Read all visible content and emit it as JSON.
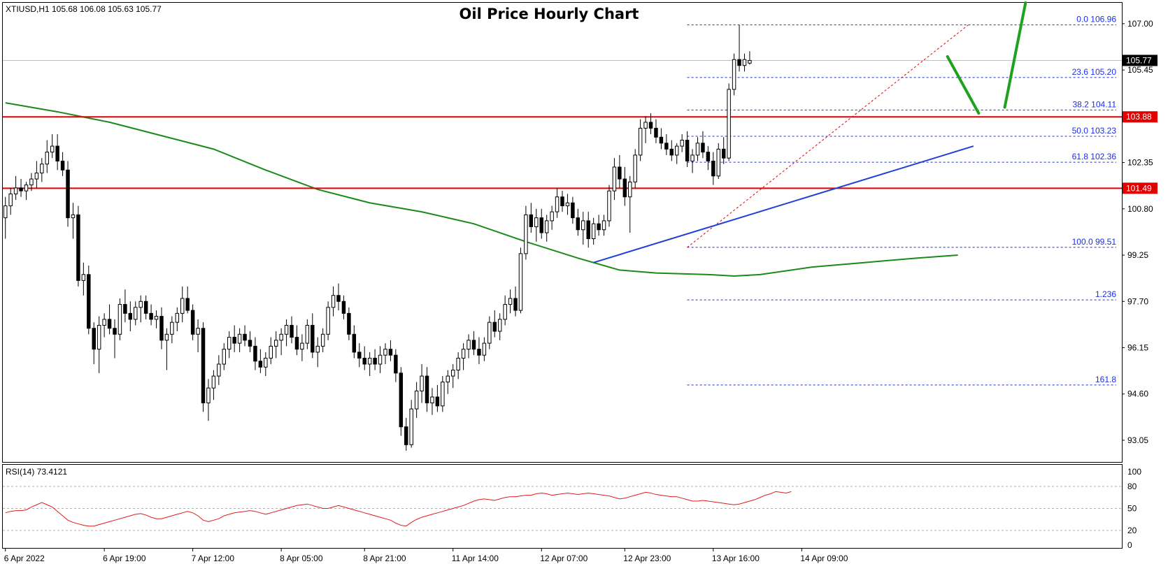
{
  "chart_data": {
    "type": "candlestick",
    "title": "Oil Price Hourly Chart",
    "symbol_info": "XTIUSD,H1  105.68 106.08 105.63 105.77",
    "price_axis": {
      "ylim": [
        92.3,
        107.7
      ],
      "ticks": [
        "107.00",
        "105.45",
        "102.35",
        "100.80",
        "99.25",
        "97.70",
        "96.15",
        "94.60",
        "93.05"
      ],
      "current_price": "105.77"
    },
    "x_axis": {
      "ticks": [
        {
          "label": "6 Apr 2022",
          "bar": 0
        },
        {
          "label": "6 Apr 19:00",
          "bar": 19
        },
        {
          "label": "7 Apr 12:00",
          "bar": 36
        },
        {
          "label": "8 Apr 05:00",
          "bar": 53
        },
        {
          "label": "8 Apr 21:00",
          "bar": 69
        },
        {
          "label": "11 Apr 14:00",
          "bar": 86
        },
        {
          "label": "12 Apr 07:00",
          "bar": 103
        },
        {
          "label": "12 Apr 23:00",
          "bar": 119
        },
        {
          "label": "13 Apr 16:00",
          "bar": 136
        },
        {
          "label": "14 Apr 09:00",
          "bar": 153
        }
      ],
      "bar_count_visible": 215
    },
    "horizontal_levels": [
      {
        "price": 103.88,
        "label": "103.88",
        "color": "#e00000"
      },
      {
        "price": 101.49,
        "label": "101.49",
        "color": "#e00000"
      }
    ],
    "fibonacci": {
      "levels": [
        {
          "label": "0.0 106.96",
          "price": 106.96
        },
        {
          "label": "23.6 105.20",
          "price": 105.2
        },
        {
          "label": "38.2 104.11",
          "price": 104.11
        },
        {
          "label": "50.0 103.23",
          "price": 103.23
        },
        {
          "label": "61.8 102.36",
          "price": 102.36
        },
        {
          "label": "100.0 99.51",
          "price": 99.51
        },
        {
          "label": "1.236",
          "price": 97.75
        },
        {
          "label": "161.8",
          "price": 94.9
        }
      ],
      "start_bar": 131,
      "end_bar": 185
    },
    "trendline": {
      "from": {
        "bar": 113,
        "price": 99.0
      },
      "to": {
        "bar": 186,
        "price": 102.9
      },
      "color": "#1f3fd8"
    },
    "moving_average_color": "#1a8a1a",
    "moving_average": [
      [
        0,
        104.35
      ],
      [
        10,
        104.05
      ],
      [
        20,
        103.7
      ],
      [
        30,
        103.25
      ],
      [
        40,
        102.8
      ],
      [
        50,
        102.1
      ],
      [
        60,
        101.45
      ],
      [
        70,
        101.0
      ],
      [
        80,
        100.7
      ],
      [
        90,
        100.3
      ],
      [
        100,
        99.7
      ],
      [
        110,
        99.15
      ],
      [
        118,
        98.75
      ],
      [
        125,
        98.65
      ],
      [
        135,
        98.6
      ],
      [
        140,
        98.55
      ],
      [
        145,
        98.6
      ],
      [
        155,
        98.85
      ],
      [
        165,
        99.0
      ],
      [
        175,
        99.15
      ],
      [
        183,
        99.25
      ]
    ],
    "projection_color": "#1ea21e",
    "projection": [
      {
        "from": {
          "bar": 181,
          "price": 105.9
        },
        "to": {
          "bar": 187,
          "price": 104.0
        }
      },
      {
        "from": {
          "bar": 192,
          "price": 104.2
        },
        "to": {
          "bar": 196,
          "price": 107.7
        }
      }
    ],
    "candles": [
      [
        100.5,
        101.2,
        99.8,
        100.9
      ],
      [
        100.9,
        101.5,
        100.6,
        101.3
      ],
      [
        101.3,
        101.9,
        101.1,
        101.5
      ],
      [
        101.5,
        101.8,
        101.2,
        101.4
      ],
      [
        101.4,
        101.7,
        101.1,
        101.6
      ],
      [
        101.6,
        102.0,
        101.4,
        101.8
      ],
      [
        101.8,
        102.4,
        101.5,
        102.0
      ],
      [
        102.0,
        102.5,
        101.7,
        102.3
      ],
      [
        102.3,
        103.1,
        102.0,
        102.7
      ],
      [
        102.7,
        103.3,
        102.5,
        102.9
      ],
      [
        102.9,
        103.3,
        102.1,
        102.4
      ],
      [
        102.4,
        102.7,
        101.9,
        102.1
      ],
      [
        102.1,
        102.4,
        100.2,
        100.5
      ],
      [
        100.5,
        101.0,
        99.8,
        100.6
      ],
      [
        100.6,
        100.9,
        98.2,
        98.4
      ],
      [
        98.4,
        99.0,
        97.9,
        98.6
      ],
      [
        98.6,
        98.9,
        96.6,
        96.8
      ],
      [
        96.8,
        97.0,
        95.6,
        96.1
      ],
      [
        96.1,
        97.2,
        95.3,
        96.9
      ],
      [
        96.9,
        97.3,
        96.5,
        97.1
      ],
      [
        97.1,
        97.6,
        96.6,
        96.8
      ],
      [
        96.8,
        97.1,
        95.8,
        96.6
      ],
      [
        96.6,
        97.8,
        96.4,
        97.6
      ],
      [
        97.6,
        98.1,
        97.0,
        97.3
      ],
      [
        97.3,
        97.7,
        96.7,
        97.1
      ],
      [
        97.1,
        97.7,
        96.9,
        97.5
      ],
      [
        97.5,
        97.9,
        97.0,
        97.7
      ],
      [
        97.7,
        97.9,
        97.1,
        97.3
      ],
      [
        97.3,
        97.6,
        96.9,
        97.1
      ],
      [
        97.1,
        97.4,
        96.8,
        97.2
      ],
      [
        97.2,
        97.5,
        96.1,
        96.4
      ],
      [
        96.4,
        96.8,
        95.4,
        96.6
      ],
      [
        96.6,
        97.2,
        96.3,
        97.0
      ],
      [
        97.0,
        97.5,
        96.7,
        97.3
      ],
      [
        97.3,
        98.2,
        97.0,
        97.8
      ],
      [
        97.8,
        98.2,
        97.3,
        97.4
      ],
      [
        97.4,
        97.6,
        96.4,
        96.6
      ],
      [
        96.6,
        97.1,
        96.0,
        96.8
      ],
      [
        96.8,
        97.0,
        94.0,
        94.3
      ],
      [
        94.3,
        95.1,
        93.7,
        94.8
      ],
      [
        94.8,
        95.4,
        94.4,
        95.2
      ],
      [
        95.2,
        95.9,
        94.9,
        95.6
      ],
      [
        95.6,
        96.3,
        95.4,
        96.1
      ],
      [
        96.1,
        96.7,
        95.8,
        96.5
      ],
      [
        96.5,
        96.9,
        96.0,
        96.3
      ],
      [
        96.3,
        96.8,
        96.0,
        96.6
      ],
      [
        96.6,
        96.9,
        96.2,
        96.4
      ],
      [
        96.4,
        96.7,
        96.0,
        96.2
      ],
      [
        96.2,
        96.5,
        95.4,
        95.7
      ],
      [
        95.7,
        96.1,
        95.3,
        95.5
      ],
      [
        95.5,
        96.0,
        95.2,
        95.8
      ],
      [
        95.8,
        96.5,
        95.6,
        96.2
      ],
      [
        96.2,
        96.7,
        95.8,
        96.4
      ],
      [
        96.4,
        96.8,
        95.9,
        96.6
      ],
      [
        96.6,
        97.1,
        96.2,
        96.9
      ],
      [
        96.9,
        97.2,
        96.3,
        96.5
      ],
      [
        96.5,
        96.9,
        95.9,
        96.1
      ],
      [
        96.1,
        96.6,
        95.7,
        96.3
      ],
      [
        96.3,
        97.1,
        96.1,
        96.9
      ],
      [
        96.9,
        97.3,
        95.8,
        96.0
      ],
      [
        96.0,
        96.5,
        95.5,
        96.2
      ],
      [
        96.2,
        96.8,
        96.0,
        96.6
      ],
      [
        96.6,
        97.7,
        96.4,
        97.5
      ],
      [
        97.5,
        98.2,
        97.2,
        97.9
      ],
      [
        97.9,
        98.3,
        97.4,
        97.7
      ],
      [
        97.7,
        97.9,
        97.1,
        97.3
      ],
      [
        97.3,
        97.5,
        96.4,
        96.6
      ],
      [
        96.6,
        96.9,
        95.8,
        96.0
      ],
      [
        96.0,
        96.3,
        95.5,
        95.8
      ],
      [
        95.8,
        96.2,
        95.4,
        95.6
      ],
      [
        95.6,
        96.0,
        95.2,
        95.8
      ],
      [
        95.8,
        96.1,
        95.4,
        95.6
      ],
      [
        95.6,
        96.2,
        95.3,
        95.9
      ],
      [
        95.9,
        96.3,
        95.6,
        96.1
      ],
      [
        96.1,
        96.4,
        95.7,
        95.9
      ],
      [
        95.9,
        96.1,
        95.0,
        95.3
      ],
      [
        95.3,
        95.5,
        93.2,
        93.5
      ],
      [
        93.5,
        93.8,
        92.7,
        92.9
      ],
      [
        92.9,
        94.4,
        92.8,
        94.1
      ],
      [
        94.1,
        95.0,
        93.8,
        94.7
      ],
      [
        94.7,
        95.6,
        94.3,
        95.2
      ],
      [
        95.2,
        95.5,
        94.0,
        94.3
      ],
      [
        94.3,
        94.8,
        93.9,
        94.5
      ],
      [
        94.5,
        94.9,
        94.0,
        94.2
      ],
      [
        94.2,
        95.2,
        94.0,
        95.0
      ],
      [
        95.0,
        95.4,
        94.6,
        95.2
      ],
      [
        95.2,
        95.6,
        94.8,
        95.4
      ],
      [
        95.4,
        96.0,
        95.1,
        95.8
      ],
      [
        95.8,
        96.3,
        95.4,
        96.1
      ],
      [
        96.1,
        96.6,
        95.8,
        96.4
      ],
      [
        96.4,
        96.7,
        95.9,
        96.1
      ],
      [
        96.1,
        96.5,
        95.6,
        95.9
      ],
      [
        95.9,
        96.5,
        95.7,
        96.3
      ],
      [
        96.3,
        97.2,
        96.1,
        97.0
      ],
      [
        97.0,
        97.4,
        96.5,
        96.7
      ],
      [
        96.7,
        97.3,
        96.4,
        97.1
      ],
      [
        97.1,
        97.9,
        96.9,
        97.6
      ],
      [
        97.6,
        98.1,
        97.3,
        97.8
      ],
      [
        97.8,
        98.2,
        97.2,
        97.4
      ],
      [
        97.4,
        99.5,
        97.3,
        99.3
      ],
      [
        99.3,
        100.9,
        99.1,
        100.6
      ],
      [
        100.6,
        101.0,
        100.0,
        100.2
      ],
      [
        100.2,
        100.8,
        99.7,
        100.5
      ],
      [
        100.5,
        100.8,
        99.8,
        100.0
      ],
      [
        100.0,
        100.6,
        99.7,
        100.4
      ],
      [
        100.4,
        100.9,
        100.1,
        100.7
      ],
      [
        100.7,
        101.5,
        100.5,
        101.2
      ],
      [
        101.2,
        101.4,
        100.7,
        100.9
      ],
      [
        100.9,
        101.3,
        100.6,
        101.0
      ],
      [
        101.0,
        101.2,
        100.3,
        100.5
      ],
      [
        100.5,
        100.8,
        99.9,
        100.1
      ],
      [
        100.1,
        100.7,
        99.6,
        100.4
      ],
      [
        100.4,
        100.7,
        99.5,
        99.8
      ],
      [
        99.8,
        100.5,
        99.6,
        100.3
      ],
      [
        100.3,
        100.6,
        99.9,
        100.1
      ],
      [
        100.1,
        100.6,
        99.9,
        100.4
      ],
      [
        100.4,
        101.6,
        100.2,
        101.4
      ],
      [
        101.4,
        102.5,
        101.1,
        102.2
      ],
      [
        102.2,
        102.6,
        101.5,
        101.8
      ],
      [
        101.8,
        102.2,
        100.9,
        101.2
      ],
      [
        101.2,
        101.9,
        100.0,
        101.7
      ],
      [
        101.7,
        102.8,
        101.5,
        102.6
      ],
      [
        102.6,
        103.8,
        102.4,
        103.5
      ],
      [
        103.5,
        103.9,
        103.0,
        103.7
      ],
      [
        103.7,
        104.0,
        103.3,
        103.5
      ],
      [
        103.5,
        103.8,
        103.0,
        103.2
      ],
      [
        103.2,
        103.5,
        102.8,
        103.0
      ],
      [
        103.0,
        103.3,
        102.6,
        102.8
      ],
      [
        102.8,
        103.1,
        102.4,
        102.6
      ],
      [
        102.6,
        103.0,
        102.3,
        102.9
      ],
      [
        102.9,
        103.3,
        102.7,
        103.1
      ],
      [
        103.1,
        103.4,
        102.2,
        102.4
      ],
      [
        102.4,
        102.8,
        102.0,
        102.6
      ],
      [
        102.6,
        103.2,
        102.4,
        103.0
      ],
      [
        103.0,
        103.4,
        102.5,
        102.7
      ],
      [
        102.7,
        102.9,
        102.1,
        102.4
      ],
      [
        102.4,
        102.7,
        101.6,
        101.9
      ],
      [
        101.9,
        103.0,
        101.8,
        102.8
      ],
      [
        102.8,
        103.2,
        102.3,
        102.5
      ],
      [
        102.5,
        105.0,
        102.4,
        104.8
      ],
      [
        104.8,
        106.0,
        104.6,
        105.8
      ],
      [
        105.8,
        106.96,
        105.4,
        105.6
      ],
      [
        105.6,
        106.0,
        105.4,
        105.8
      ],
      [
        105.68,
        106.08,
        105.63,
        105.77
      ]
    ],
    "indicator": {
      "label": "RSI(14) 73.4121",
      "ylim": [
        0,
        100
      ],
      "ticks": [
        "100",
        "80",
        "50",
        "20",
        "0"
      ],
      "line_color": "#e31a1a",
      "values": [
        44,
        46,
        47,
        47,
        48,
        52,
        55,
        58,
        55,
        52,
        46,
        40,
        34,
        31,
        29,
        27,
        26,
        26,
        28,
        30,
        32,
        34,
        36,
        38,
        40,
        42,
        43,
        41,
        38,
        36,
        36,
        38,
        40,
        42,
        44,
        46,
        44,
        40,
        34,
        32,
        34,
        36,
        40,
        42,
        44,
        45,
        46,
        47,
        46,
        44,
        42,
        44,
        46,
        48,
        50,
        52,
        54,
        55,
        56,
        54,
        52,
        50,
        50,
        52,
        54,
        52,
        50,
        48,
        46,
        44,
        42,
        40,
        38,
        36,
        34,
        30,
        27,
        26,
        31,
        35,
        38,
        40,
        42,
        44,
        46,
        48,
        50,
        52,
        54,
        57,
        60,
        62,
        63,
        62,
        61,
        63,
        65,
        66,
        66,
        67,
        68,
        68,
        70,
        71,
        70,
        68,
        69,
        70,
        71,
        70,
        69,
        70,
        71,
        70,
        69,
        68,
        67,
        65,
        63,
        64,
        66,
        68,
        70,
        72,
        71,
        69,
        68,
        67,
        66,
        66,
        64,
        62,
        60,
        60,
        61,
        60,
        59,
        58,
        57,
        56,
        55,
        56,
        58,
        60,
        62,
        65,
        68,
        70,
        73,
        72,
        71,
        73
      ]
    }
  }
}
